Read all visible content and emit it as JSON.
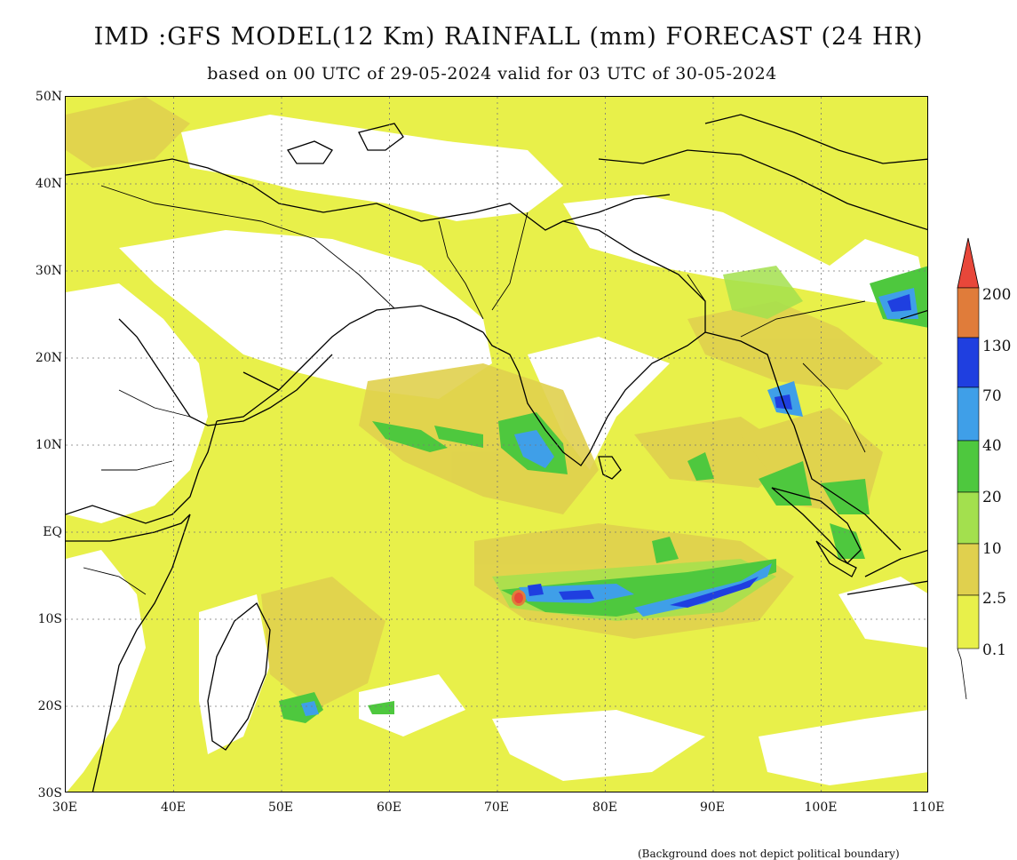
{
  "title": "IMD :GFS MODEL(12 Km) RAINFALL (mm) FORECAST (24 HR)",
  "subtitle": "based on 00 UTC of 29-05-2024 valid for 03 UTC of 30-05-2024",
  "footnote": "(Background does not depict political boundary)",
  "map": {
    "lat_labels": [
      "50N",
      "40N",
      "30N",
      "20N",
      "10N",
      "EQ",
      "10S",
      "20S",
      "30S"
    ],
    "lon_labels": [
      "30E",
      "40E",
      "50E",
      "60E",
      "70E",
      "80E",
      "90E",
      "100E",
      "110E"
    ],
    "extent": {
      "lon_min": 30,
      "lon_max": 110,
      "lat_min": -30,
      "lat_max": 50
    },
    "grid": "dotted"
  },
  "legend": {
    "labels": [
      "200",
      "130",
      "70",
      "40",
      "20",
      "10",
      "2.5",
      "0.1"
    ],
    "colors": [
      "#e8473a",
      "#e07c3a",
      "#1f3fe0",
      "#3f9fe8",
      "#4ec83e",
      "#a3e04e",
      "#e0d04e",
      "#e8f04a"
    ],
    "units": "mm"
  },
  "colors": {
    "light_rain": "#e8f04a",
    "moderate": "#e0d04e",
    "heavy": "#4ec83e",
    "very_heavy": "#3f9fe8",
    "extreme": "#1f3fe0"
  }
}
